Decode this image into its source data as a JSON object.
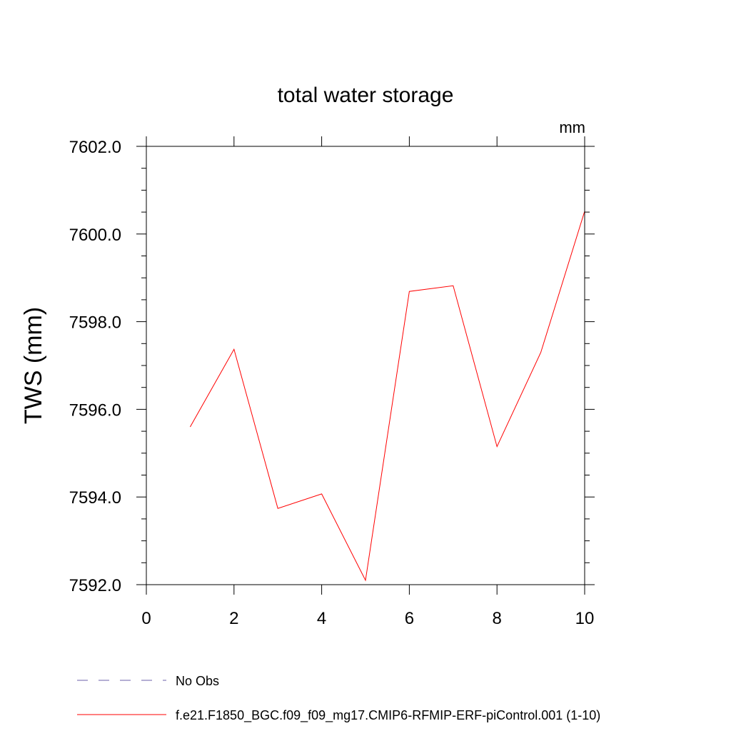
{
  "chart_data": {
    "type": "line",
    "title": "total water storage",
    "units_label": "mm",
    "xlabel": "",
    "ylabel": "TWS  (mm)",
    "xlim": [
      0,
      10
    ],
    "ylim": [
      7592.0,
      7602.0
    ],
    "x_ticks": [
      0,
      2,
      4,
      6,
      8,
      10
    ],
    "x_tick_labels": [
      "0",
      "2",
      "4",
      "6",
      "8",
      "10"
    ],
    "y_ticks": [
      7592.0,
      7594.0,
      7596.0,
      7598.0,
      7600.0,
      7602.0
    ],
    "y_tick_labels": [
      "7592.0",
      "7594.0",
      "7596.0",
      "7598.0",
      "7600.0",
      "7602.0"
    ],
    "grid": false,
    "legend_position": "bottom-left",
    "series": [
      {
        "name": "No Obs",
        "color": "#6b5fa8",
        "style": "dashed",
        "x": [],
        "y": []
      },
      {
        "name": "f.e21.F1850_BGC.f09_f09_mg17.CMIP6-RFMIP-ERF-piControl.001 (1-10)",
        "color": "#ff0000",
        "style": "solid",
        "x": [
          1,
          2,
          3,
          4,
          5,
          6,
          7,
          8,
          9,
          10
        ],
        "y": [
          7595.6,
          7597.37,
          7593.74,
          7594.07,
          7592.1,
          7598.69,
          7598.82,
          7595.15,
          7597.3,
          7600.52
        ]
      }
    ]
  }
}
